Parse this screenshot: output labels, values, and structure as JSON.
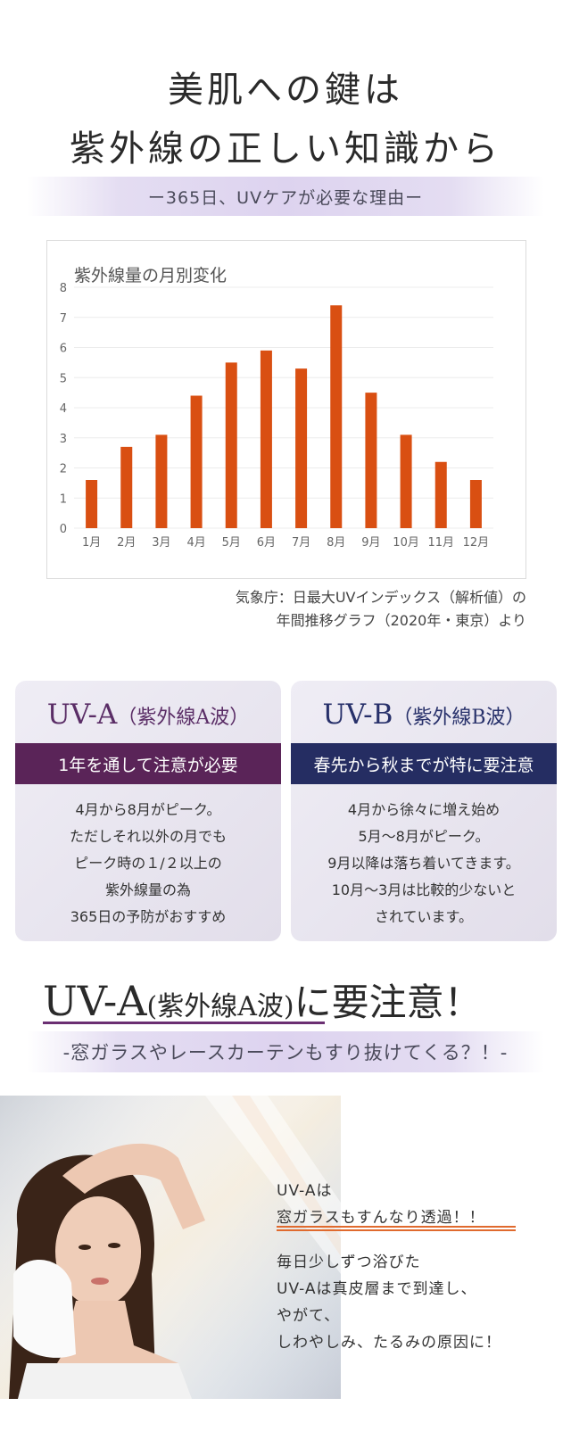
{
  "headline": {
    "line1": "美肌への鍵は",
    "line2": "紫外線の正しい知識から"
  },
  "subtitle": "ー365日、UVケアが必要な理由ー",
  "chart_data": {
    "type": "bar",
    "title": "紫外線量の月別変化",
    "categories": [
      "1月",
      "2月",
      "3月",
      "4月",
      "5月",
      "6月",
      "7月",
      "8月",
      "9月",
      "10月",
      "11月",
      "12月"
    ],
    "values": [
      1.6,
      2.7,
      3.1,
      4.4,
      5.5,
      5.9,
      5.3,
      7.4,
      4.5,
      3.1,
      2.2,
      1.6
    ],
    "ylim": [
      0,
      8
    ],
    "yticks": [
      "0",
      "1",
      "2",
      "3",
      "4",
      "5",
      "6",
      "7",
      "8"
    ],
    "grid": true,
    "bar_color": "#d94f12"
  },
  "source": {
    "line1": "気象庁：日最大UVインデックス（解析値）の",
    "line2": "年間推移グラフ（2020年・東京）より"
  },
  "card_a": {
    "title_main": "UV-A",
    "title_sub": "（紫外線A波）",
    "bar": "1年を通して注意が必要",
    "body": [
      "4月から8月がピーク。",
      "ただしそれ以外の月でも",
      "ピーク時の１/２以上の",
      "紫外線量の為",
      "365日の予防がおすすめ"
    ],
    "color": "#5a2458"
  },
  "card_b": {
    "title_main": "UV-B",
    "title_sub": "（紫外線B波）",
    "bar": "春先から秋までが特に要注意",
    "body": [
      "4月から徐々に増え始め",
      "5月〜8月がピーク。",
      "9月以降は落ち着いてきます。",
      "10月〜3月は比較的少ないと",
      "されています。"
    ],
    "color": "#252d62"
  },
  "uva_section": {
    "main": "UV-A",
    "paren": "(紫外線A波)",
    "tail": "に要注意！",
    "subtitle": "-窓ガラスやレースカーテンもすり抜けてくる？！-"
  },
  "caption": {
    "line1": "UV-Aは",
    "line2": "窓ガラスもすんなり透過！！",
    "line3": "毎日少しずつ浴びた",
    "line4": "UV-Aは真皮層まで到達し、",
    "line5": "やがて、",
    "line6": "しわやしみ、たるみの原因に！"
  }
}
